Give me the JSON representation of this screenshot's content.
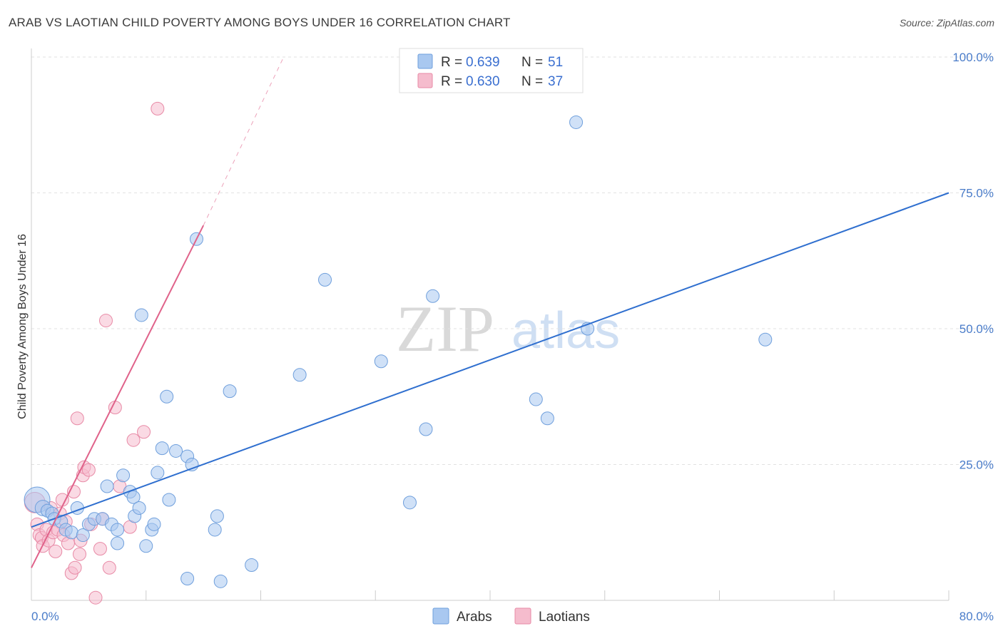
{
  "title": "ARAB VS LAOTIAN CHILD POVERTY AMONG BOYS UNDER 16 CORRELATION CHART",
  "source": "Source: ZipAtlas.com",
  "watermark": {
    "zip": "ZIP",
    "atlas": "atlas"
  },
  "colors": {
    "arab_fill": "#a9c8f0",
    "arab_stroke": "#6f9fdc",
    "arab_line": "#2f6fcf",
    "lao_fill": "#f5bccd",
    "lao_stroke": "#e88aa6",
    "lao_line": "#e0628a",
    "grid": "#e2e2e2",
    "axis_text": "#4a7cc9"
  },
  "legend": {
    "rows": [
      {
        "r_label": "R = ",
        "r_value": "0.639",
        "n_label": "N = ",
        "n_value": "51"
      },
      {
        "r_label": "R = ",
        "r_value": "0.630",
        "n_label": "N = ",
        "n_value": "37"
      }
    ]
  },
  "chart_data": {
    "type": "scatter",
    "xlabel": "",
    "ylabel": "Child Poverty Among Boys Under 16",
    "xlim": [
      0,
      80
    ],
    "ylim": [
      0,
      100
    ],
    "x_tick_labels": [
      "0.0%",
      "80.0%"
    ],
    "y_ticks": [
      25,
      50,
      75,
      100
    ],
    "y_tick_labels": [
      "25.0%",
      "50.0%",
      "75.0%",
      "100.0%"
    ],
    "grid": true,
    "legend_position": "top-center",
    "series": [
      {
        "name": "Arabs",
        "points": [
          [
            0.5,
            18.5,
            2.0
          ],
          [
            1.0,
            17.0,
            1.2
          ],
          [
            1.4,
            16.5,
            1.0
          ],
          [
            1.8,
            16.0,
            1.0
          ],
          [
            2.0,
            15.0,
            1.0
          ],
          [
            2.6,
            14.5,
            1.0
          ],
          [
            3.0,
            13.0,
            1.0
          ],
          [
            3.5,
            12.5,
            1.0
          ],
          [
            4.0,
            17.0,
            1.0
          ],
          [
            4.5,
            12.0,
            1.0
          ],
          [
            5.0,
            14.0,
            1.0
          ],
          [
            5.5,
            15.0,
            1.0
          ],
          [
            6.2,
            15.0,
            1.0
          ],
          [
            6.6,
            21.0,
            1.0
          ],
          [
            7.0,
            14.0,
            1.0
          ],
          [
            7.5,
            13.0,
            1.0
          ],
          [
            7.5,
            10.5,
            1.0
          ],
          [
            8.0,
            23.0,
            1.0
          ],
          [
            8.6,
            20.0,
            1.0
          ],
          [
            8.9,
            19.0,
            1.0
          ],
          [
            9.0,
            15.5,
            1.0
          ],
          [
            9.4,
            17.0,
            1.0
          ],
          [
            9.6,
            52.5,
            1.0
          ],
          [
            10.0,
            10.0,
            1.0
          ],
          [
            10.5,
            13.0,
            1.0
          ],
          [
            10.7,
            14.0,
            1.0
          ],
          [
            11.0,
            23.5,
            1.0
          ],
          [
            11.4,
            28.0,
            1.0
          ],
          [
            11.8,
            37.5,
            1.0
          ],
          [
            12.0,
            18.5,
            1.0
          ],
          [
            12.6,
            27.5,
            1.0
          ],
          [
            13.6,
            26.5,
            1.0
          ],
          [
            14.0,
            25.0,
            1.0
          ],
          [
            13.6,
            4.0,
            1.0
          ],
          [
            14.4,
            66.5,
            1.0
          ],
          [
            16.0,
            13.0,
            1.0
          ],
          [
            16.2,
            15.5,
            1.0
          ],
          [
            16.5,
            3.5,
            1.0
          ],
          [
            17.3,
            38.5,
            1.0
          ],
          [
            19.2,
            6.5,
            1.0
          ],
          [
            23.4,
            41.5,
            1.0
          ],
          [
            25.6,
            59.0,
            1.0
          ],
          [
            30.5,
            44.0,
            1.0
          ],
          [
            33.0,
            18.0,
            1.0
          ],
          [
            34.4,
            31.5,
            1.0
          ],
          [
            35.0,
            56.0,
            1.0
          ],
          [
            44.0,
            37.0,
            1.0
          ],
          [
            45.0,
            33.5,
            1.0
          ],
          [
            47.5,
            88.0,
            1.0
          ],
          [
            48.5,
            50.0,
            1.0
          ],
          [
            64.0,
            48.0,
            1.0
          ]
        ]
      },
      {
        "name": "Laotians",
        "points": [
          [
            0.3,
            18.0,
            1.6
          ],
          [
            0.5,
            14.0,
            1.0
          ],
          [
            0.7,
            12.0,
            1.0
          ],
          [
            0.9,
            11.5,
            1.0
          ],
          [
            1.0,
            10.0,
            1.0
          ],
          [
            1.3,
            13.0,
            1.0
          ],
          [
            1.5,
            11.0,
            1.0
          ],
          [
            1.7,
            17.0,
            1.0
          ],
          [
            1.9,
            12.5,
            1.0
          ],
          [
            2.1,
            9.0,
            1.0
          ],
          [
            2.3,
            13.0,
            1.0
          ],
          [
            2.5,
            16.0,
            1.0
          ],
          [
            2.7,
            18.5,
            1.0
          ],
          [
            2.8,
            12.0,
            1.0
          ],
          [
            3.0,
            14.5,
            1.0
          ],
          [
            3.2,
            10.5,
            1.0
          ],
          [
            3.5,
            5.0,
            1.0
          ],
          [
            3.7,
            20.0,
            1.0
          ],
          [
            3.8,
            6.0,
            1.0
          ],
          [
            4.0,
            33.5,
            1.0
          ],
          [
            4.2,
            8.5,
            1.0
          ],
          [
            4.3,
            11.0,
            1.0
          ],
          [
            4.5,
            23.0,
            1.0
          ],
          [
            4.6,
            24.5,
            1.0
          ],
          [
            5.0,
            24.0,
            1.0
          ],
          [
            5.2,
            14.0,
            1.0
          ],
          [
            5.6,
            0.5,
            1.0
          ],
          [
            6.0,
            9.5,
            1.0
          ],
          [
            6.2,
            15.0,
            1.0
          ],
          [
            6.5,
            51.5,
            1.0
          ],
          [
            6.8,
            6.0,
            1.0
          ],
          [
            7.3,
            35.5,
            1.0
          ],
          [
            7.7,
            21.0,
            1.0
          ],
          [
            8.6,
            13.5,
            1.0
          ],
          [
            8.9,
            29.5,
            1.0
          ],
          [
            9.8,
            31.0,
            1.0
          ],
          [
            11.0,
            90.5,
            1.0
          ]
        ]
      }
    ],
    "trendlines": [
      {
        "series": "Arabs",
        "x": [
          0,
          80
        ],
        "y": [
          13.5,
          75.0
        ]
      },
      {
        "series": "Laotians",
        "x": [
          0,
          15.0
        ],
        "y": [
          6.0,
          69.0
        ],
        "dashed_extension_to": [
          22.0,
          100.0
        ]
      }
    ]
  }
}
